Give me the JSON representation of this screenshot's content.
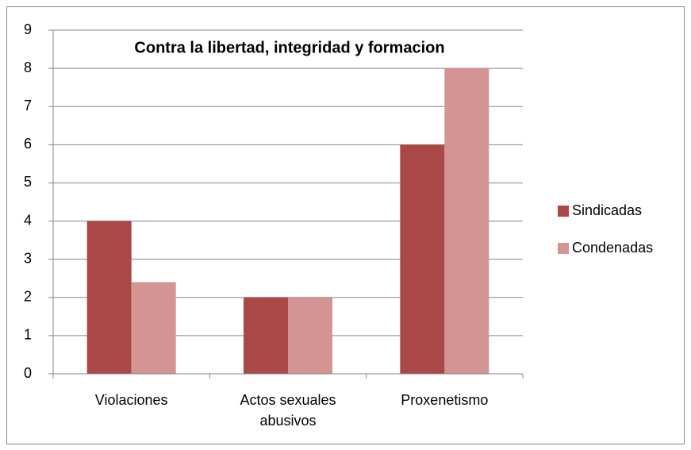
{
  "chart_data": {
    "type": "bar",
    "title": "Contra la libertad, integridad y formacion",
    "categories": [
      "Violaciones",
      "Actos sexuales abusivos",
      "Proxenetismo"
    ],
    "series": [
      {
        "name": "Sindicadas",
        "color": "#a94846",
        "values": [
          4,
          2,
          6
        ]
      },
      {
        "name": "Condenadas",
        "color": "#d49494",
        "values": [
          2.4,
          2,
          8
        ]
      }
    ],
    "ylim": [
      0,
      9
    ],
    "yticks": [
      0,
      1,
      2,
      3,
      4,
      5,
      6,
      7,
      8,
      9
    ],
    "grid": true,
    "legend": "right"
  }
}
